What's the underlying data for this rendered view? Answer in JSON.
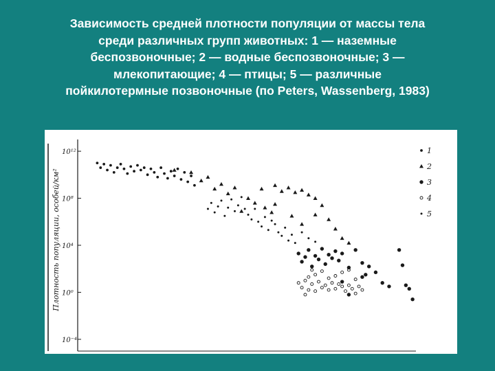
{
  "slide": {
    "title_lines": [
      "Зависимость средней плотности популяции от массы тела",
      "среди различных групп животных: 1 — наземные",
      "беспозвоночные; 2 — водные беспозвоночные;   3 —",
      "млекопитающие; 4 — птицы; 5 — различные",
      "пойкилотермные позвоночные (по Peters, Wassenberg, 1983)"
    ]
  },
  "colors": {
    "background": "#13807f",
    "title_text": "#ffffff",
    "figure_background": "#ffffff",
    "ink": "#1a1a1a"
  },
  "chart_data": {
    "type": "scatter",
    "title": "",
    "xlabel": "",
    "ylabel": "Плотность популяции, особей/км²",
    "y_scale": "log",
    "ylim": [
      -5,
      13
    ],
    "y_ticks": [
      {
        "label": "10¹²",
        "exp": 12
      },
      {
        "label": "10⁸",
        "exp": 8
      },
      {
        "label": "10⁴",
        "exp": 4
      },
      {
        "label": "10⁰",
        "exp": 0
      },
      {
        "label": "10⁻⁴",
        "exp": -4
      }
    ],
    "xlim": [
      0,
      100
    ],
    "legend_position": "right",
    "legend": [
      {
        "label": "1",
        "marker": "dot"
      },
      {
        "label": "2",
        "marker": "triangle"
      },
      {
        "label": "3",
        "marker": "dot-large"
      },
      {
        "label": "4",
        "marker": "circle-small"
      },
      {
        "label": "5",
        "marker": "dot-small"
      }
    ],
    "series": [
      {
        "marker": "dot",
        "points": [
          [
            5,
            11
          ],
          [
            6,
            10.6
          ],
          [
            7,
            10.9
          ],
          [
            8,
            10.4
          ],
          [
            9,
            10.8
          ],
          [
            10,
            10.2
          ],
          [
            11,
            10.6
          ],
          [
            12,
            10.9
          ],
          [
            13,
            10.5
          ],
          [
            14,
            10.1
          ],
          [
            15,
            10.7
          ],
          [
            16,
            10.3
          ],
          [
            17,
            10.8
          ],
          [
            18,
            10.4
          ],
          [
            19,
            10.6
          ],
          [
            20,
            10
          ],
          [
            21,
            10.5
          ],
          [
            22,
            10.2
          ],
          [
            23,
            9.8
          ],
          [
            24,
            10.6
          ],
          [
            25,
            10.1
          ],
          [
            26,
            9.7
          ],
          [
            27,
            10.3
          ],
          [
            28,
            9.9
          ],
          [
            29,
            10.5
          ],
          [
            30,
            9.6
          ],
          [
            31,
            10.2
          ],
          [
            32,
            9.4
          ],
          [
            33,
            9.9
          ],
          [
            34,
            9.1
          ]
        ]
      },
      {
        "marker": "triangle",
        "points": [
          [
            28,
            10.4
          ],
          [
            33,
            10.2
          ],
          [
            36,
            9.5
          ],
          [
            38,
            9.8
          ],
          [
            40,
            8.8
          ],
          [
            42,
            9.2
          ],
          [
            44,
            8.4
          ],
          [
            46,
            8.9
          ],
          [
            50,
            8
          ],
          [
            52,
            7.6
          ],
          [
            54,
            8.8
          ],
          [
            55,
            7.2
          ],
          [
            57,
            6.8
          ],
          [
            58,
            7.5
          ],
          [
            60,
            8.6
          ],
          [
            62,
            8.9
          ],
          [
            64,
            8.5
          ],
          [
            66,
            8.7
          ],
          [
            68,
            8.3
          ],
          [
            70,
            8
          ],
          [
            72,
            7.4
          ],
          [
            74,
            6.2
          ],
          [
            76,
            5.4
          ],
          [
            78,
            4.6
          ],
          [
            80,
            4.2
          ],
          [
            63,
            6.5
          ],
          [
            66,
            5.8
          ],
          [
            70,
            6.6
          ],
          [
            58,
            9.1
          ],
          [
            48,
            6.9
          ]
        ]
      },
      {
        "marker": "dot-large",
        "points": [
          [
            65,
            3.3
          ],
          [
            66,
            2.6
          ],
          [
            67,
            3
          ],
          [
            68,
            3.6
          ],
          [
            69,
            2.2
          ],
          [
            70,
            3.1
          ],
          [
            71,
            2.8
          ],
          [
            72,
            3.7
          ],
          [
            73,
            2.4
          ],
          [
            74,
            3.2
          ],
          [
            75,
            2.9
          ],
          [
            76,
            3.5
          ],
          [
            77,
            2.7
          ],
          [
            78,
            3.3
          ],
          [
            80,
            2.1
          ],
          [
            82,
            3.6
          ],
          [
            84,
            2.5
          ],
          [
            85,
            1.5
          ],
          [
            86,
            2.2
          ],
          [
            88,
            1.7
          ],
          [
            90,
            0.8
          ],
          [
            92,
            0.5
          ],
          [
            95,
            3.6
          ],
          [
            96,
            2.3
          ],
          [
            97,
            0.6
          ],
          [
            98,
            0.3
          ],
          [
            99,
            -0.6
          ],
          [
            78,
            0.9
          ],
          [
            80,
            -0.2
          ],
          [
            84,
            1.3
          ]
        ]
      },
      {
        "marker": "circle-small",
        "points": [
          [
            65,
            0.8
          ],
          [
            66,
            0.4
          ],
          [
            67,
            1
          ],
          [
            68,
            0.2
          ],
          [
            69,
            0.7
          ],
          [
            70,
            0.1
          ],
          [
            71,
            0.9
          ],
          [
            72,
            0.4
          ],
          [
            73,
            0.6
          ],
          [
            74,
            0.2
          ],
          [
            75,
            0.8
          ],
          [
            76,
            0.3
          ],
          [
            77,
            0.7
          ],
          [
            78,
            0.5
          ],
          [
            79,
            0.1
          ],
          [
            80,
            0.6
          ],
          [
            81,
            0.3
          ],
          [
            82,
            1.1
          ],
          [
            83,
            0.5
          ],
          [
            70,
            1.5
          ],
          [
            72,
            1.8
          ],
          [
            74,
            1.2
          ],
          [
            76,
            1.4
          ],
          [
            78,
            1.7
          ],
          [
            68,
            1.3
          ],
          [
            80,
            1.9
          ],
          [
            82,
            -0.1
          ],
          [
            84,
            0.2
          ],
          [
            67,
            -0.2
          ],
          [
            69,
            1.9
          ]
        ]
      },
      {
        "marker": "dot-small",
        "points": [
          [
            38,
            7.1
          ],
          [
            39,
            7.6
          ],
          [
            40,
            6.8
          ],
          [
            41,
            7.3
          ],
          [
            42,
            7.8
          ],
          [
            43,
            6.5
          ],
          [
            44,
            7.2
          ],
          [
            45,
            7.9
          ],
          [
            46,
            6.9
          ],
          [
            47,
            7.4
          ],
          [
            48,
            8.1
          ],
          [
            49,
            7.1
          ],
          [
            50,
            6.6
          ],
          [
            51,
            6.2
          ],
          [
            52,
            7.1
          ],
          [
            53,
            6
          ],
          [
            54,
            5.6
          ],
          [
            55,
            6.4
          ],
          [
            56,
            5.3
          ],
          [
            57,
            6.1
          ],
          [
            58,
            5.8
          ],
          [
            59,
            5.1
          ],
          [
            60,
            4.8
          ],
          [
            61,
            5.5
          ],
          [
            62,
            4.4
          ],
          [
            63,
            4.9
          ],
          [
            64,
            4.2
          ],
          [
            66,
            5.1
          ],
          [
            68,
            4.6
          ],
          [
            70,
            4.3
          ]
        ]
      }
    ]
  }
}
